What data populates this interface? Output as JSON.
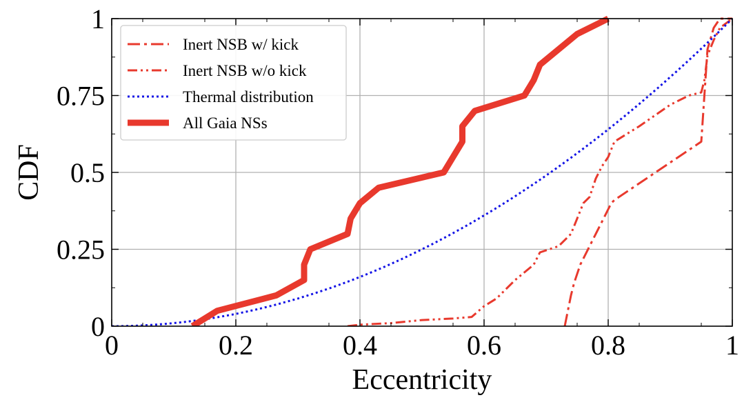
{
  "chart_data": {
    "type": "line",
    "title": "",
    "xlabel": "Eccentricity",
    "ylabel": "CDF",
    "xlim": [
      0,
      1
    ],
    "ylim": [
      0,
      1
    ],
    "grid": true,
    "legend_position": "top-left",
    "x_ticks": [
      "0",
      "0.2",
      "0.4",
      "0.6",
      "0.8",
      "1"
    ],
    "y_ticks": [
      "0",
      "0.25",
      "0.5",
      "0.75",
      "1"
    ],
    "series": [
      {
        "name": "Inert NSB w/ kick",
        "color": "#e8392d",
        "style": "dashdot",
        "x": [
          0.73,
          0.735,
          0.74,
          0.745,
          0.75,
          0.755,
          0.76,
          0.77,
          0.78,
          0.79,
          0.8,
          0.805,
          0.81,
          0.95,
          0.955,
          0.96,
          0.97,
          0.98,
          0.99,
          1.0
        ],
        "y": [
          0,
          0.05,
          0.1,
          0.14,
          0.17,
          0.2,
          0.22,
          0.26,
          0.3,
          0.34,
          0.38,
          0.4,
          0.41,
          0.6,
          0.75,
          0.9,
          0.97,
          1.0,
          1.0,
          1.0
        ]
      },
      {
        "name": "Inert NSB w/o kick",
        "color": "#e8392d",
        "style": "dashdotdot",
        "x": [
          0.38,
          0.4,
          0.45,
          0.5,
          0.55,
          0.58,
          0.6,
          0.62,
          0.65,
          0.68,
          0.69,
          0.72,
          0.74,
          0.75,
          0.76,
          0.77,
          0.78,
          0.79,
          0.8,
          0.81,
          0.85,
          0.9,
          0.93,
          0.95,
          0.955,
          0.96,
          0.97,
          0.98,
          1.0
        ],
        "y": [
          0,
          0.005,
          0.01,
          0.02,
          0.025,
          0.03,
          0.065,
          0.09,
          0.15,
          0.2,
          0.24,
          0.26,
          0.3,
          0.35,
          0.4,
          0.42,
          0.48,
          0.52,
          0.55,
          0.6,
          0.65,
          0.72,
          0.75,
          0.76,
          0.8,
          0.88,
          0.93,
          0.97,
          1.0
        ]
      },
      {
        "name": "Thermal distribution",
        "color": "#1414e6",
        "style": "dotted",
        "function": "e^2",
        "x": [
          0,
          0.05,
          0.1,
          0.15,
          0.2,
          0.25,
          0.3,
          0.35,
          0.4,
          0.45,
          0.5,
          0.55,
          0.6,
          0.65,
          0.7,
          0.75,
          0.8,
          0.85,
          0.9,
          0.95,
          1.0
        ],
        "y": [
          0,
          0.0025,
          0.01,
          0.0225,
          0.04,
          0.0625,
          0.09,
          0.1225,
          0.16,
          0.2025,
          0.25,
          0.3025,
          0.36,
          0.4225,
          0.49,
          0.5625,
          0.64,
          0.7225,
          0.81,
          0.9025,
          1.0
        ]
      },
      {
        "name": "All Gaia NSs",
        "color": "#e8392d",
        "style": "solid-thick",
        "x": [
          0.13,
          0.17,
          0.265,
          0.31,
          0.31,
          0.32,
          0.38,
          0.385,
          0.4,
          0.43,
          0.535,
          0.55,
          0.565,
          0.565,
          0.585,
          0.665,
          0.68,
          0.69,
          0.75,
          0.8
        ],
        "y": [
          0,
          0.05,
          0.1,
          0.15,
          0.2,
          0.25,
          0.3,
          0.35,
          0.4,
          0.45,
          0.5,
          0.55,
          0.6,
          0.65,
          0.7,
          0.75,
          0.8,
          0.85,
          0.95,
          1.0
        ]
      }
    ]
  }
}
